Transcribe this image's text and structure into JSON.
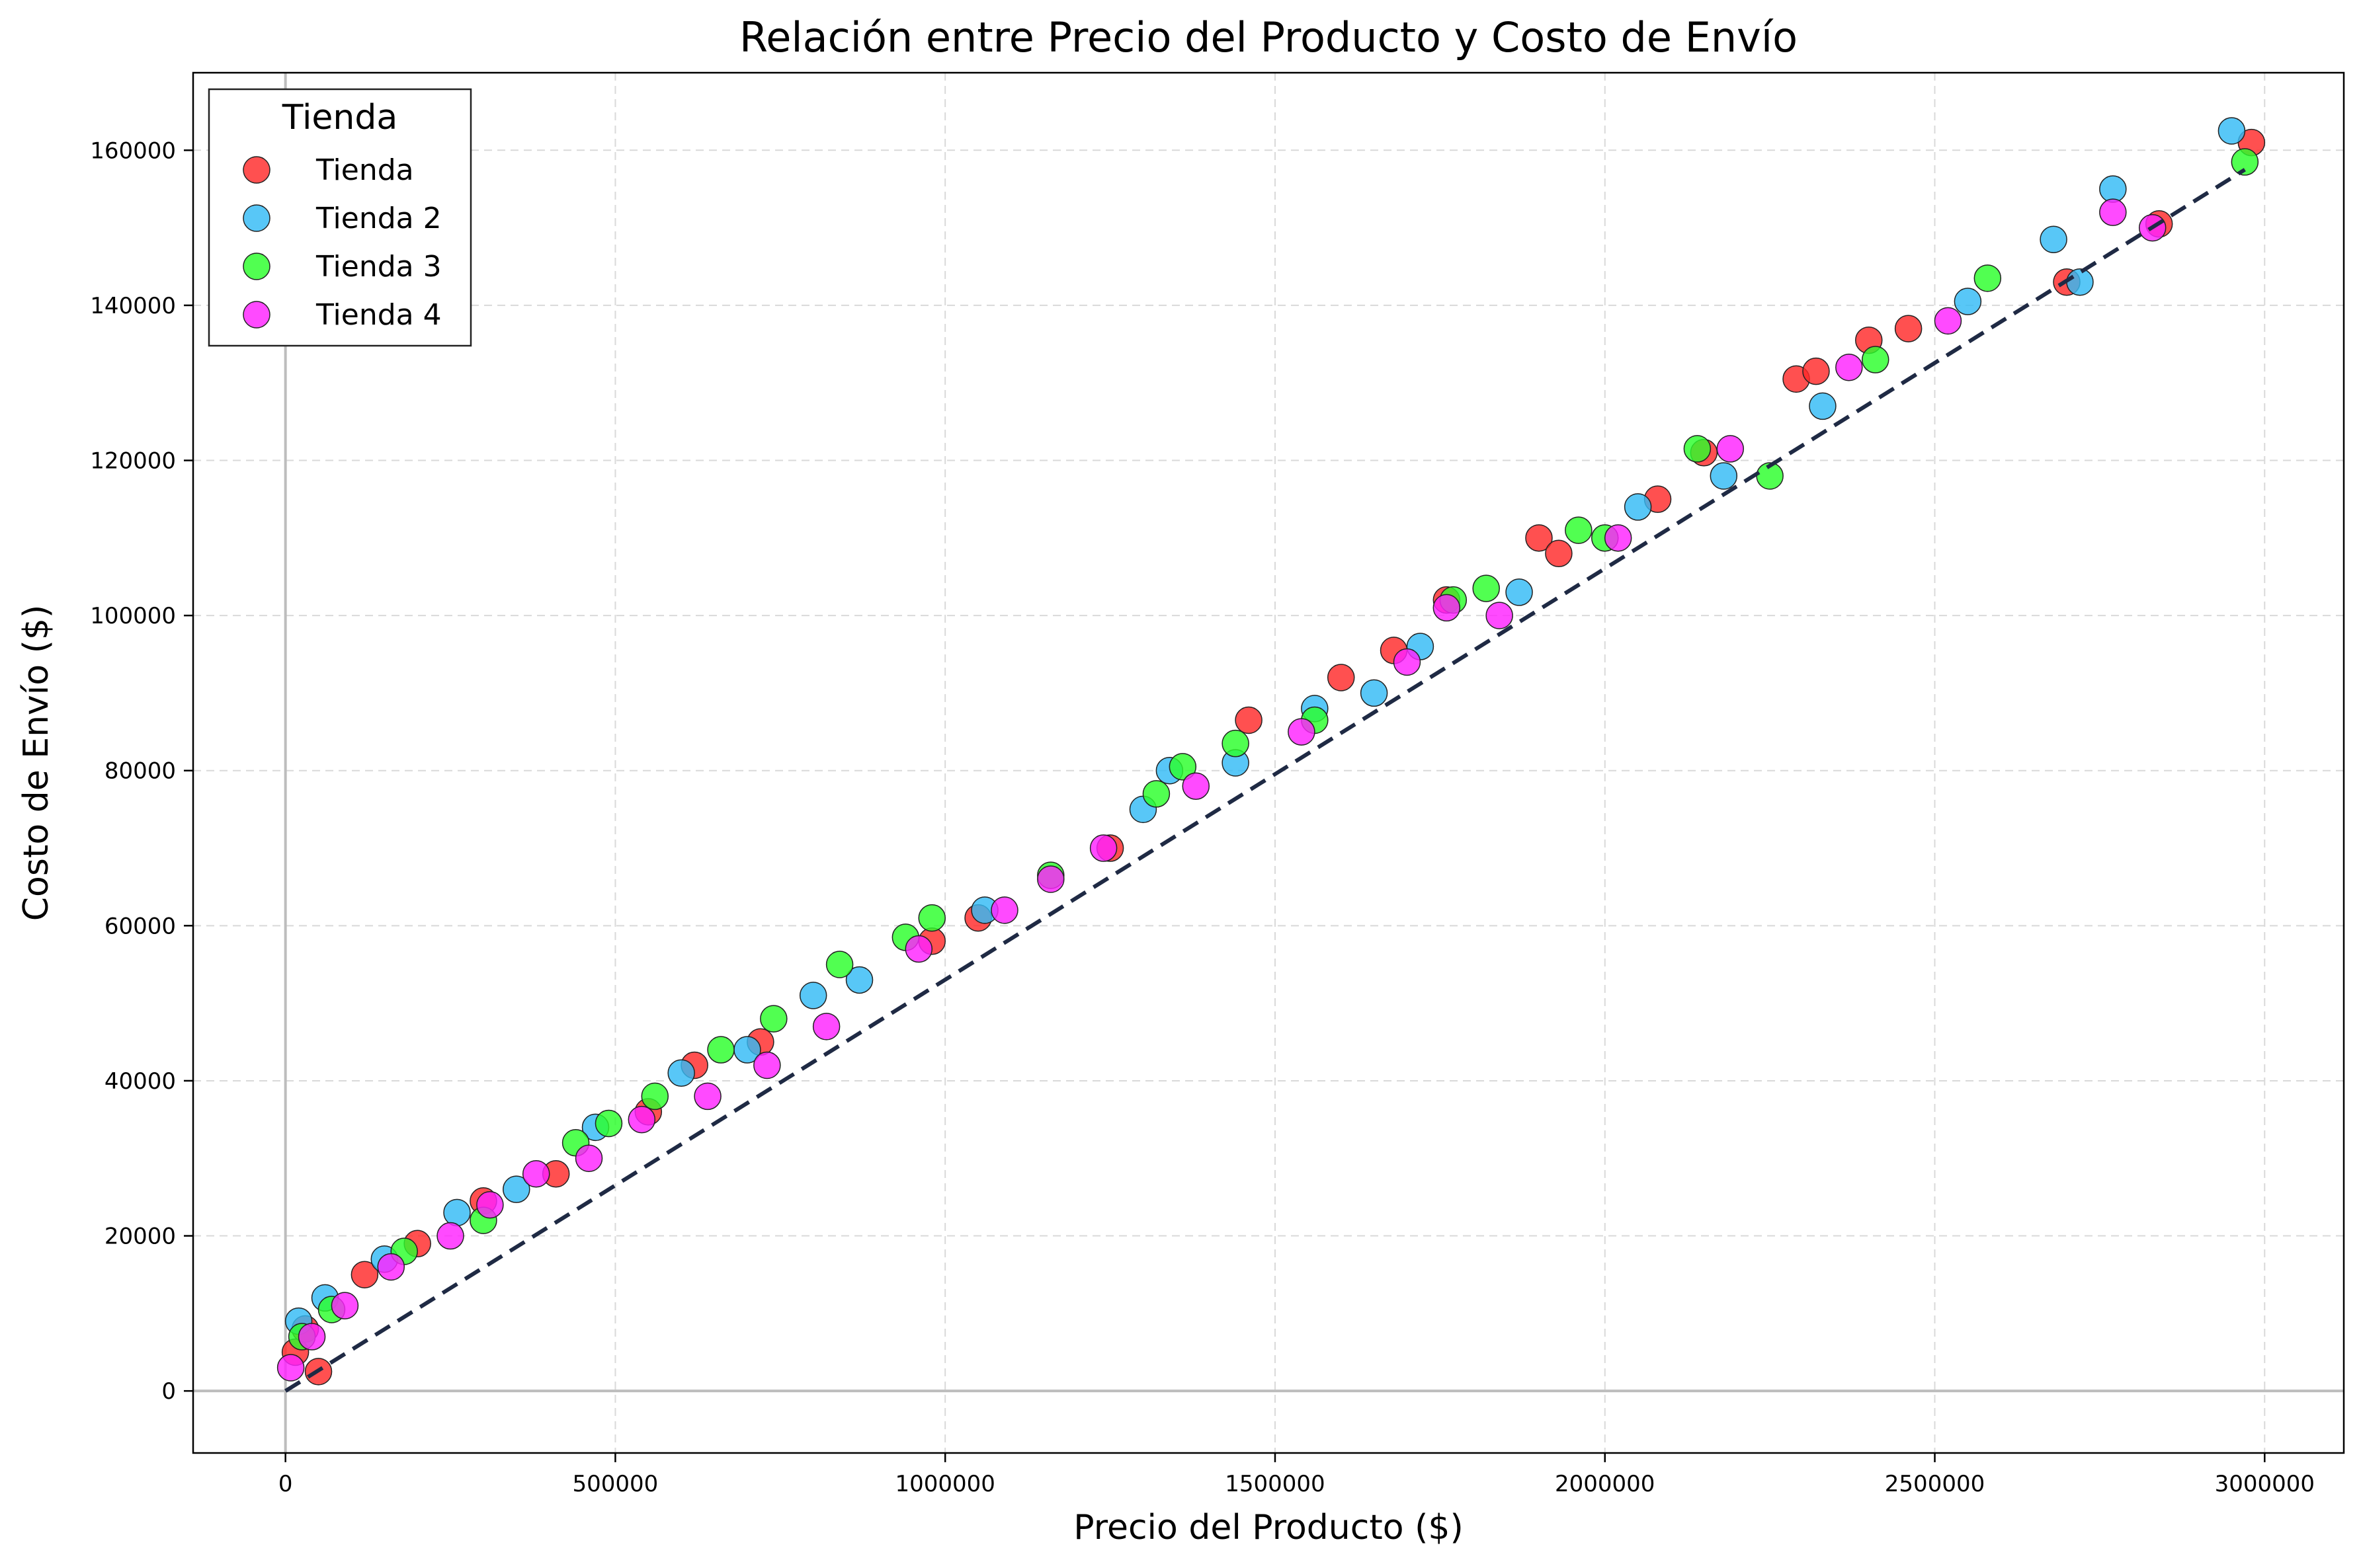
{
  "chart_data": {
    "type": "scatter",
    "title": "Relación entre Precio del Producto y Costo de Envío",
    "xlabel": "Precio del Producto ($)",
    "ylabel": "Costo de Envío ($)",
    "xlim": [
      -140000,
      3120000
    ],
    "ylim": [
      -8000,
      170000
    ],
    "xticks": [
      0,
      500000,
      1000000,
      1500000,
      2000000,
      2500000,
      3000000
    ],
    "yticks": [
      0,
      20000,
      40000,
      60000,
      80000,
      100000,
      120000,
      140000,
      160000
    ],
    "xtick_labels": [
      "0",
      "500000",
      "1000000",
      "1500000",
      "2000000",
      "2500000",
      "3000000"
    ],
    "ytick_labels": [
      "0",
      "20000",
      "40000",
      "60000",
      "80000",
      "100000",
      "120000",
      "140000",
      "160000"
    ],
    "grid": true,
    "grid_style": "dashed",
    "reference_lines": {
      "x": 0,
      "y": 0
    },
    "trend_line": {
      "style": "dashed",
      "color": "#1f2a44",
      "from": [
        0,
        0
      ],
      "to": [
        2970000,
        157500
      ]
    },
    "legend": {
      "title": "Tienda",
      "position": "upper-left"
    },
    "series": [
      {
        "name": "Tienda",
        "color": "#ff2a2a",
        "x": [
          15000,
          30000,
          50000,
          120000,
          200000,
          300000,
          410000,
          550000,
          620000,
          720000,
          980000,
          1050000,
          1250000,
          1460000,
          1600000,
          1680000,
          1760000,
          1900000,
          1930000,
          2080000,
          2150000,
          2290000,
          2320000,
          2400000,
          2460000,
          2700000,
          2840000,
          2980000
        ],
        "y": [
          5000,
          8000,
          2500,
          15000,
          19000,
          24500,
          28000,
          36000,
          42000,
          45000,
          58000,
          61000,
          70000,
          86500,
          92000,
          95500,
          102000,
          110000,
          108000,
          115000,
          121000,
          130500,
          131500,
          135500,
          137000,
          143000,
          150500,
          161000
        ]
      },
      {
        "name": "Tienda 2",
        "color": "#33bbf5",
        "x": [
          20000,
          60000,
          150000,
          260000,
          350000,
          470000,
          600000,
          700000,
          800000,
          870000,
          1060000,
          1300000,
          1340000,
          1440000,
          1560000,
          1650000,
          1720000,
          1870000,
          2050000,
          2180000,
          2330000,
          2550000,
          2680000,
          2720000,
          2770000,
          2950000
        ],
        "y": [
          9000,
          12000,
          17000,
          23000,
          26000,
          34000,
          41000,
          44000,
          51000,
          53000,
          62000,
          75000,
          80000,
          81000,
          88000,
          90000,
          96000,
          103000,
          114000,
          118000,
          127000,
          140500,
          148500,
          143000,
          155000,
          162500
        ]
      },
      {
        "name": "Tienda 3",
        "color": "#2bff2b",
        "x": [
          25000,
          70000,
          180000,
          300000,
          440000,
          490000,
          560000,
          660000,
          740000,
          840000,
          940000,
          980000,
          1160000,
          1320000,
          1360000,
          1440000,
          1560000,
          1770000,
          1820000,
          1960000,
          2000000,
          2140000,
          2250000,
          2410000,
          2580000,
          2970000
        ],
        "y": [
          7000,
          10500,
          18000,
          22000,
          32000,
          34500,
          38000,
          44000,
          48000,
          55000,
          58500,
          61000,
          66500,
          77000,
          80500,
          83500,
          86500,
          102000,
          103500,
          111000,
          110000,
          121500,
          118000,
          133000,
          143500,
          158500
        ]
      },
      {
        "name": "Tienda 4",
        "color": "#ff22ff",
        "x": [
          8000,
          40000,
          90000,
          160000,
          250000,
          310000,
          380000,
          460000,
          540000,
          640000,
          730000,
          820000,
          960000,
          1090000,
          1160000,
          1240000,
          1380000,
          1540000,
          1700000,
          1760000,
          1840000,
          2020000,
          2190000,
          2370000,
          2520000,
          2770000,
          2830000
        ],
        "y": [
          3000,
          7000,
          11000,
          16000,
          20000,
          24000,
          28000,
          30000,
          35000,
          38000,
          42000,
          47000,
          57000,
          62000,
          66000,
          70000,
          78000,
          85000,
          94000,
          101000,
          100000,
          110000,
          121500,
          132000,
          138000,
          152000,
          150000
        ]
      }
    ]
  }
}
